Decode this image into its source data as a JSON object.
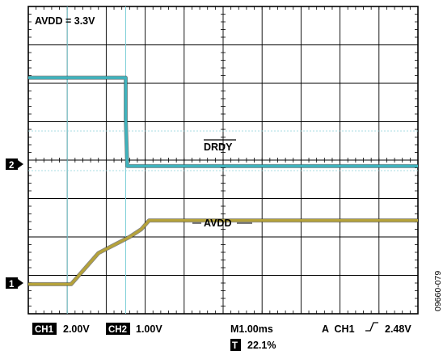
{
  "chart_data": {
    "type": "line",
    "instrument": "oscilloscope",
    "annotation": "AVDD = 3.3V",
    "grid": true,
    "divisions": {
      "x": 10,
      "y": 8
    },
    "x_unit": "ms",
    "x_per_div": 1.0,
    "x_range_div": [
      0,
      10
    ],
    "series": [
      {
        "name": "DRDY",
        "channel": "CH2",
        "marker_label": "2",
        "color": "#3fb3bd",
        "volts_per_div": 1.0,
        "x_div": [
          0,
          2.5,
          2.5,
          2.54,
          10
        ],
        "y_div_above_marker": [
          2.25,
          2.25,
          1.2,
          -0.05,
          -0.05
        ]
      },
      {
        "name": "AVDD",
        "channel": "CH1",
        "marker_label": "1",
        "color": "#b5a23a",
        "volts_per_div": 2.0,
        "x_div": [
          0,
          1.1,
          1.8,
          2.6,
          2.9,
          3.1,
          10
        ],
        "y_div_above_marker": [
          -0.03,
          -0.03,
          0.78,
          1.2,
          1.4,
          1.63,
          1.63
        ]
      }
    ],
    "cursor_lines_div": [
      1.0,
      2.5
    ],
    "status_bar": {
      "ch1_badge": "CH1",
      "ch1_scale": "2.00V",
      "ch2_badge": "CH2",
      "ch2_scale": "1.00V",
      "timebase": "M1.00ms",
      "trigger": "A  CH1",
      "trigger_level": "2.48V",
      "trigger_pos_badge": "T",
      "trigger_pos": "22.1%"
    },
    "figure_code": "09660-079"
  }
}
